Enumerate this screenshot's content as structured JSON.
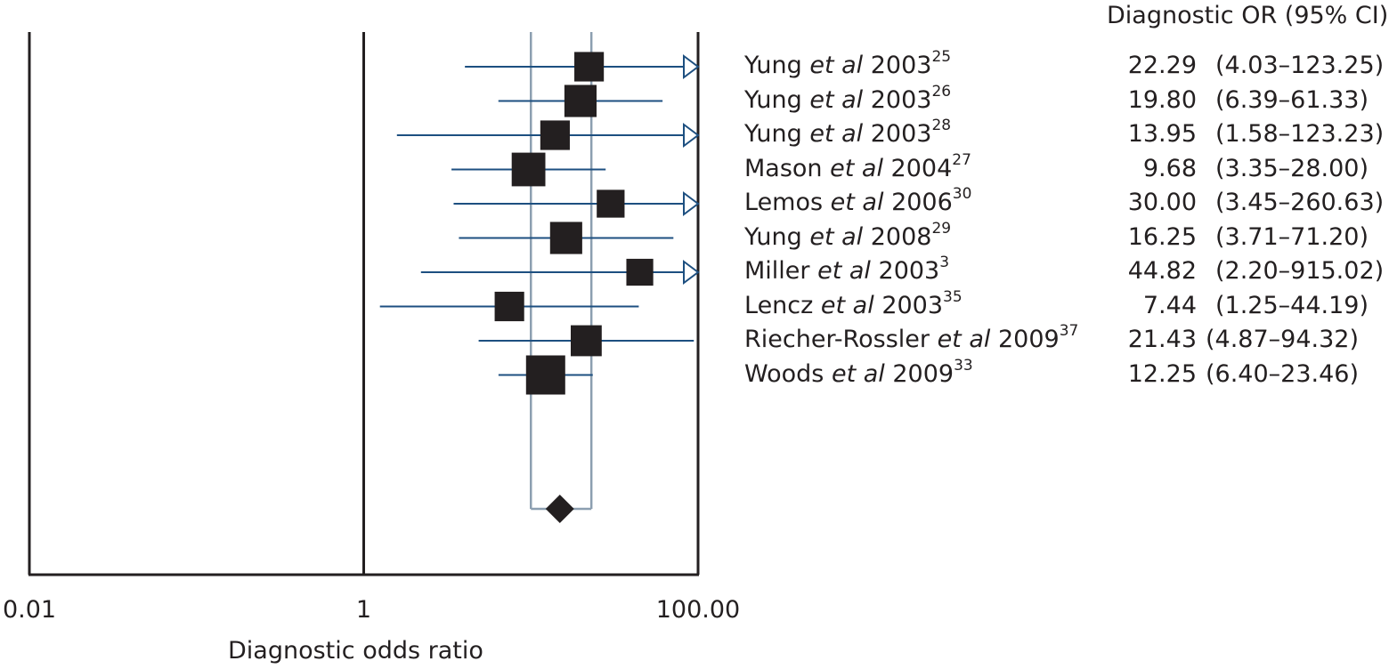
{
  "chart_data": {
    "type": "forest",
    "column_header": "Diagnostic OR (95% CI)",
    "xlabel": "Diagnostic odds ratio",
    "x_scale": "log",
    "xlim": [
      0.01,
      100
    ],
    "x_ticks": [
      {
        "value": 0.01,
        "label": "0.01"
      },
      {
        "value": 1,
        "label": "1"
      },
      {
        "value": 100,
        "label": "100.00"
      }
    ],
    "studies": [
      {
        "author": "Yung ",
        "etal": "et al",
        "year": " 2003",
        "ref": "25",
        "or": 22.29,
        "lo": 4.03,
        "hi": 123.25,
        "or_text": "22.29",
        "ci_text": "(4.03–123.25)",
        "weight": 0.3
      },
      {
        "author": "Yung ",
        "etal": "et al",
        "year": " 2003",
        "ref": "26",
        "or": 19.8,
        "lo": 6.39,
        "hi": 61.33,
        "or_text": "19.80",
        "ci_text": "(6.39–61.33)",
        "weight": 0.45
      },
      {
        "author": "Yung ",
        "etal": "et al",
        "year": " 2003",
        "ref": "28",
        "or": 13.95,
        "lo": 1.58,
        "hi": 123.23,
        "or_text": "13.95",
        "ci_text": "(1.58–123.23)",
        "weight": 0.3
      },
      {
        "author": "Mason ",
        "etal": "et al",
        "year": " 2004",
        "ref": "27",
        "or": 9.68,
        "lo": 3.35,
        "hi": 28.0,
        "or_text": "9.68",
        "ci_text": "(3.35–28.00)",
        "weight": 0.55
      },
      {
        "author": "Lemos ",
        "etal": "et al",
        "year": " 2006",
        "ref": "30",
        "or": 30.0,
        "lo": 3.45,
        "hi": 260.63,
        "or_text": "30.00",
        "ci_text": "(3.45–260.63)",
        "weight": 0.22
      },
      {
        "author": "Yung ",
        "etal": "et al",
        "year": " 2008",
        "ref": "29",
        "or": 16.25,
        "lo": 3.71,
        "hi": 71.2,
        "or_text": "16.25",
        "ci_text": "(3.71–71.20)",
        "weight": 0.45
      },
      {
        "author": "Miller ",
        "etal": "et al",
        "year": " 2003",
        "ref": "3",
        "or": 44.82,
        "lo": 2.2,
        "hi": 915.02,
        "or_text": "44.82",
        "ci_text": "(2.20–915.02)",
        "weight": 0.18
      },
      {
        "author": "Lencz ",
        "etal": "et al",
        "year": " 2003",
        "ref": "35",
        "or": 7.44,
        "lo": 1.25,
        "hi": 44.19,
        "or_text": "7.44",
        "ci_text": "(1.25–44.19)",
        "weight": 0.3
      },
      {
        "author": "Riecher-Rossler ",
        "etal": "et al",
        "year": " 2009",
        "ref": "37",
        "or": 21.43,
        "lo": 4.87,
        "hi": 94.32,
        "or_text": "21.43",
        "ci_text": "(4.87–94.32)",
        "weight": 0.38
      },
      {
        "author": "Woods ",
        "etal": "et al",
        "year": " 2009",
        "ref": "33",
        "or": 12.25,
        "lo": 6.4,
        "hi": 23.46,
        "or_text": "12.25",
        "ci_text": "(6.40–23.46)",
        "weight": 1.0
      }
    ],
    "pooled": {
      "or": 14.9,
      "lo": 10.0,
      "hi": 23.0
    }
  }
}
